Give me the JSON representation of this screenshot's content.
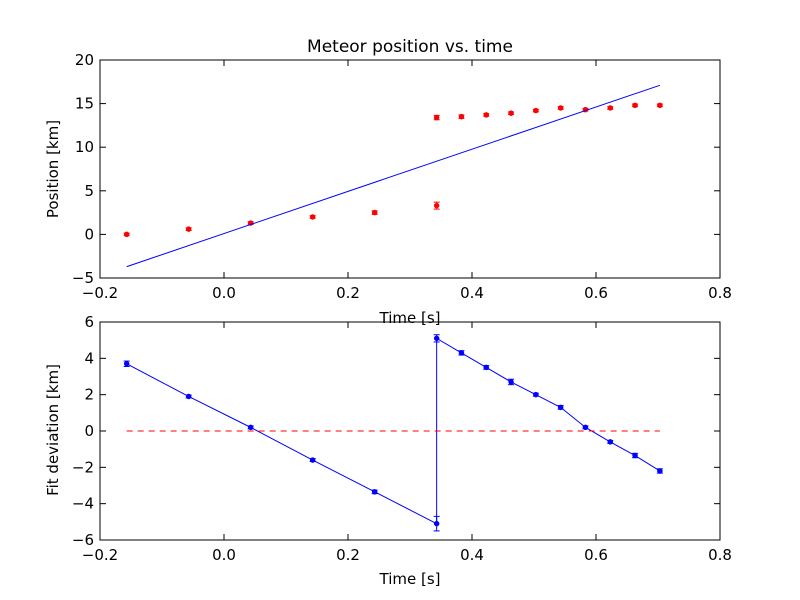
{
  "chart_data": [
    {
      "type": "scatter",
      "title": "Meteor position vs. time",
      "xlabel": "Time [s]",
      "ylabel": "Position [km]",
      "xlim": [
        -0.2,
        0.8
      ],
      "ylim": [
        -5,
        20
      ],
      "xticks": [
        "−0.2",
        "0.0",
        "0.2",
        "0.4",
        "0.6",
        "0.8"
      ],
      "yticks": [
        "−5",
        "0",
        "5",
        "10",
        "15",
        "20"
      ],
      "grid": false,
      "series": [
        {
          "kind": "errorbar-points",
          "color": "#ff0000",
          "x": [
            -0.157,
            -0.057,
            0.043,
            0.143,
            0.243,
            0.343,
            0.343,
            0.383,
            0.423,
            0.463,
            0.503,
            0.543,
            0.583,
            0.623,
            0.663,
            0.703
          ],
          "y": [
            0.0,
            0.6,
            1.3,
            2.0,
            2.5,
            3.3,
            13.4,
            13.5,
            13.7,
            13.9,
            14.2,
            14.5,
            14.3,
            14.5,
            14.8,
            14.8
          ],
          "yerr": [
            0.15,
            0.15,
            0.15,
            0.15,
            0.2,
            0.4,
            0.25,
            0.2,
            0.15,
            0.15,
            0.15,
            0.15,
            0.15,
            0.15,
            0.15,
            0.15
          ]
        },
        {
          "kind": "line",
          "color": "#0000ff",
          "x": [
            -0.157,
            0.703
          ],
          "y": [
            -3.7,
            17.1
          ]
        }
      ]
    },
    {
      "type": "line",
      "title": "",
      "xlabel": "Time [s]",
      "ylabel": "Fit deviation [km]",
      "xlim": [
        -0.2,
        0.8
      ],
      "ylim": [
        -6,
        6
      ],
      "xticks": [
        "−0.2",
        "0.0",
        "0.2",
        "0.4",
        "0.6",
        "0.8"
      ],
      "yticks": [
        "−6",
        "−4",
        "−2",
        "0",
        "2",
        "4",
        "6"
      ],
      "grid": false,
      "series": [
        {
          "kind": "errorbar-line",
          "color": "#0000ff",
          "x": [
            -0.157,
            -0.057,
            0.043,
            0.143,
            0.243,
            0.343,
            0.343,
            0.383,
            0.423,
            0.463,
            0.503,
            0.543,
            0.583,
            0.623,
            0.663,
            0.703
          ],
          "y": [
            3.7,
            1.9,
            0.2,
            -1.6,
            -3.35,
            -5.1,
            5.1,
            4.3,
            3.5,
            2.7,
            2.0,
            1.3,
            0.2,
            -0.6,
            -1.35,
            -2.2
          ],
          "yerr": [
            0.15,
            0.08,
            0.08,
            0.08,
            0.1,
            0.4,
            0.2,
            0.12,
            0.1,
            0.15,
            0.08,
            0.1,
            0.08,
            0.08,
            0.12,
            0.12
          ]
        },
        {
          "kind": "dashed-line",
          "color": "#ff0000",
          "x": [
            -0.157,
            0.703
          ],
          "y": [
            0,
            0
          ]
        }
      ]
    }
  ]
}
